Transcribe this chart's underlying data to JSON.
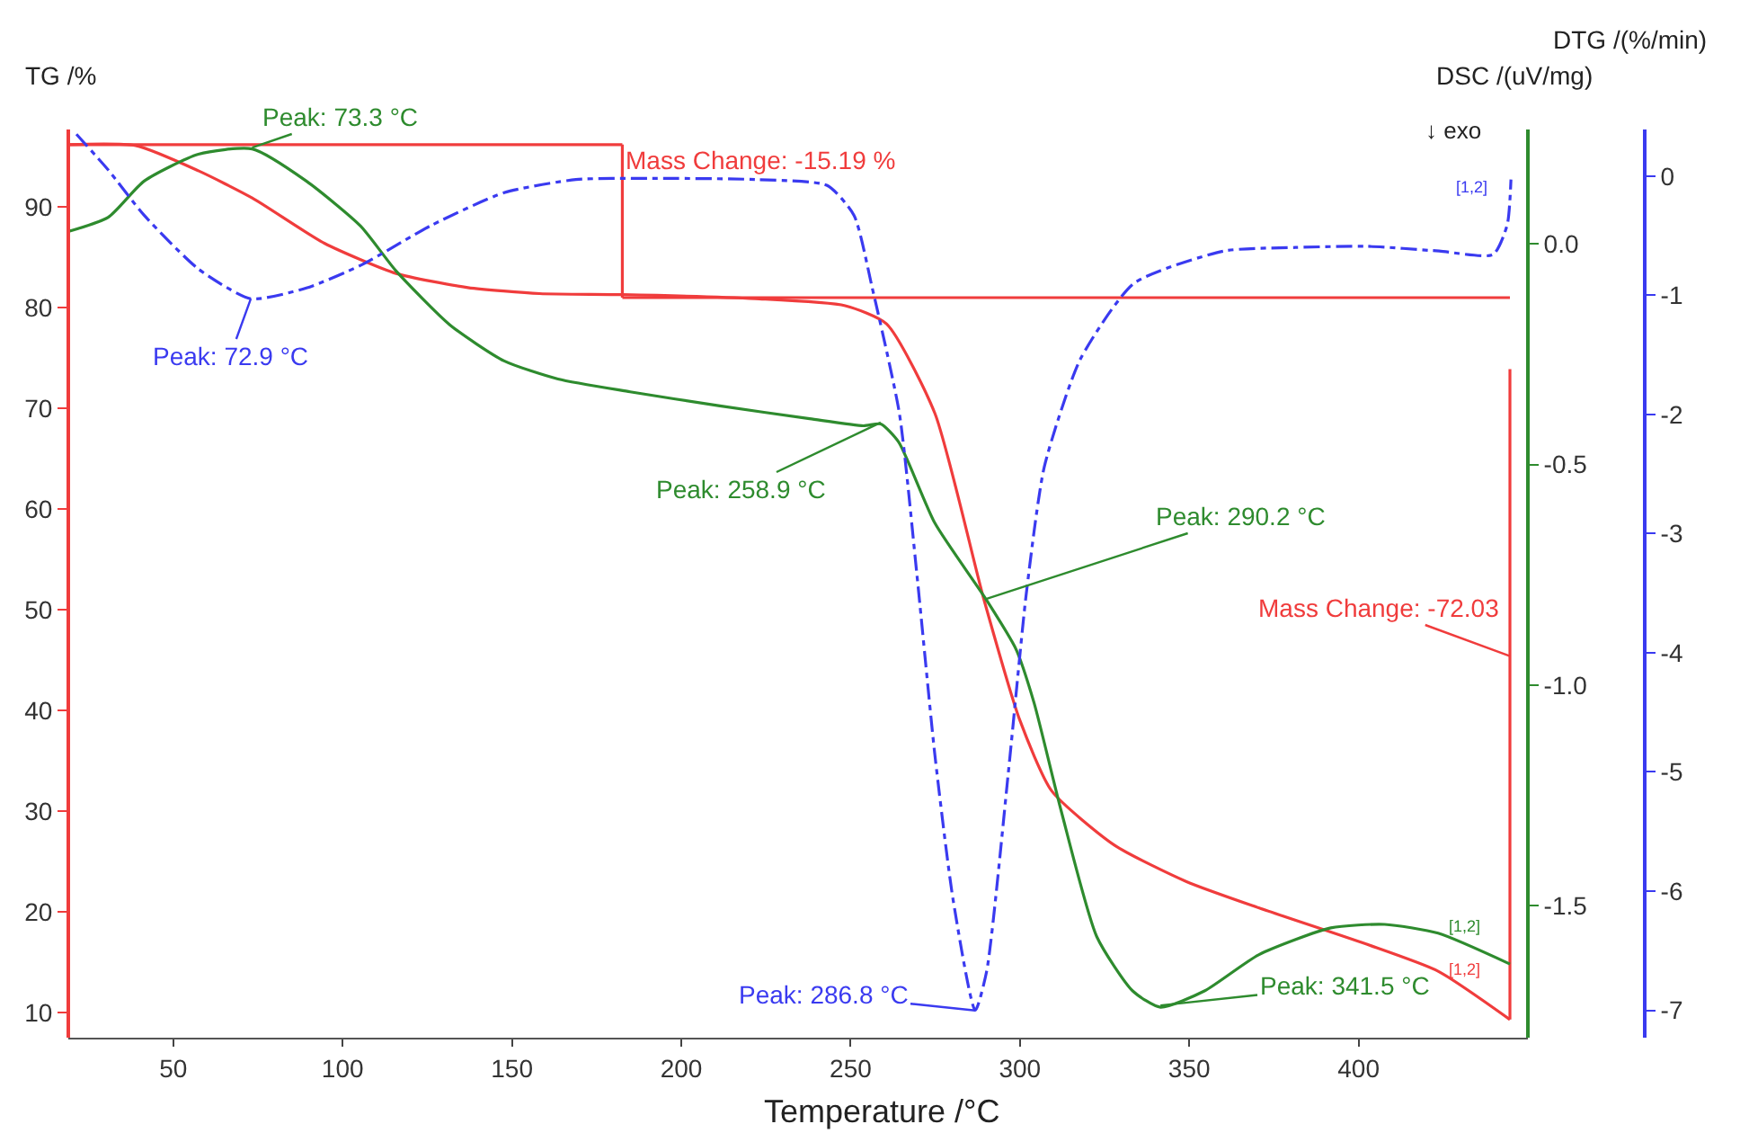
{
  "chart_data": {
    "type": "line",
    "xlabel": "Temperature /°C",
    "ylabel": "TG /%",
    "y2label": "DSC /(uV/mg)",
    "y3label": "DTG /(%/min)",
    "xlim": [
      19,
      450
    ],
    "xticks": [
      50,
      100,
      150,
      200,
      250,
      300,
      350,
      400
    ],
    "ylim": [
      7.5,
      97.7
    ],
    "yticks": [
      10,
      20,
      30,
      40,
      50,
      60,
      70,
      80,
      90
    ],
    "y2lim": [
      -1.8,
      0.26
    ],
    "y2ticks": [
      {
        "value": 0,
        "label": "0.0"
      },
      -0.5,
      {
        "value": -1,
        "label": "-1.0"
      },
      -1.5
    ],
    "y3lim": [
      -7.23,
      0.39
    ],
    "y3ticks": [
      0,
      -1,
      -2,
      -3,
      -4,
      -5,
      -6,
      -7
    ],
    "marker": "none",
    "series": [
      {
        "color": "#f03c3c",
        "line_style": "solid",
        "x": [
          19.2,
          38.9,
          57.4,
          73.3,
          94.6,
          115.8,
          137,
          158.2,
          182.6,
          221.9,
          248.4,
          260.6,
          274.9,
          289.3,
          299.9,
          309.4,
          328,
          349.2,
          370.5,
          402.2,
          423.5,
          444.7
        ],
        "values": [
          96.2,
          96.1,
          93.6,
          90.9,
          86.4,
          83.4,
          82.0,
          81.4,
          81.3,
          80.9,
          80.2,
          78.4,
          69.5,
          51.1,
          39.1,
          32.0,
          26.6,
          23.0,
          20.4,
          16.8,
          14.1,
          9.3
        ]
      },
      {
        "color": "#2e8b2e",
        "line_style": "solid",
        "axis": "y2",
        "x": [
          19.2,
          30.8,
          41.4,
          57.4,
          73.3,
          89.3,
          105.3,
          115.8,
          131.8,
          147.7,
          163.6,
          184.9,
          211.4,
          237.9,
          253.8,
          258.9,
          264.2,
          274.9,
          290.2,
          298.8,
          304.2,
          312.2,
          322.7,
          333.3,
          341.5,
          354.5,
          370.5,
          391.8,
          407.7,
          423.5,
          444.7
        ],
        "values": [
          0.029,
          0.061,
          0.143,
          0.204,
          0.216,
          0.143,
          0.041,
          -0.061,
          -0.184,
          -0.265,
          -0.306,
          -0.335,
          -0.367,
          -0.396,
          -0.412,
          -0.408,
          -0.449,
          -0.633,
          -0.808,
          -0.918,
          -1.041,
          -1.286,
          -1.571,
          -1.694,
          -1.731,
          -1.694,
          -1.612,
          -1.551,
          -1.543,
          -1.563,
          -1.633
        ]
      },
      {
        "color": "#3a3af0",
        "line_style": "dashdot",
        "axis": "y3",
        "x": [
          21.4,
          30.8,
          41.4,
          57.4,
          72.9,
          89.3,
          105.3,
          126.5,
          147.7,
          168.9,
          190.1,
          221.9,
          243.1,
          251,
          256.4,
          264.4,
          269.6,
          274.9,
          280.2,
          286.8,
          290.2,
          296.6,
          301.9,
          307.2,
          317.8,
          333.7,
          360.2,
          381.4,
          402.6,
          423.8,
          439.7,
          443.9,
          445
        ],
        "values": [
          0.35,
          0.05,
          -0.33,
          -0.78,
          -1.03,
          -0.94,
          -0.75,
          -0.41,
          -0.14,
          -0.03,
          -0.02,
          -0.03,
          -0.08,
          -0.33,
          -0.94,
          -1.99,
          -3.35,
          -4.86,
          -6.06,
          -7.0,
          -6.67,
          -5.0,
          -3.5,
          -2.44,
          -1.54,
          -0.9,
          -0.63,
          -0.6,
          -0.59,
          -0.63,
          -0.66,
          -0.41,
          -0.03
        ]
      },
      {
        "color": "#f03c3c",
        "line_style": "solid",
        "x": [
          19.2,
          182.6
        ],
        "values": [
          96.2,
          96.2
        ]
      },
      {
        "color": "#f03c3c",
        "line_style": "solid",
        "x": [
          182.6,
          182.6
        ],
        "values": [
          96.2,
          81.0
        ]
      },
      {
        "color": "#f03c3c",
        "line_style": "solid",
        "x": [
          182.6,
          444.7
        ],
        "values": [
          81.0,
          81.0
        ]
      },
      {
        "color": "#f03c3c",
        "line_style": "solid",
        "x": [
          444.7,
          444.7
        ],
        "values": [
          73.9,
          9.3
        ]
      }
    ],
    "annotations": [
      {
        "text": "Peak: 73.3 °C",
        "x": 73.3,
        "y": 95.9
      },
      {
        "text": "Peak: 72.9 °C",
        "x": 72.9,
        "y": 80.9
      },
      {
        "text": "Mass Change: -15.19 %",
        "x": 182.6,
        "y": 94.7
      },
      {
        "text": "Peak: 258.9 °C",
        "x": 258.9,
        "y": 68.6
      },
      {
        "text": "Peak: 290.2 °C",
        "x": 290.2,
        "y": 51.1
      },
      {
        "text": "Mass Change: -72.03",
        "x": 444.7,
        "y": 45.4
      },
      {
        "text": "Peak: 286.8 °C",
        "x": 286.8,
        "y": 10.2
      },
      {
        "text": "Peak: 341.5 °C",
        "x": 341.5,
        "y": 10.7
      },
      "[1,2]",
      "[1,2]",
      "[1,2]",
      "↓ exo"
    ]
  }
}
